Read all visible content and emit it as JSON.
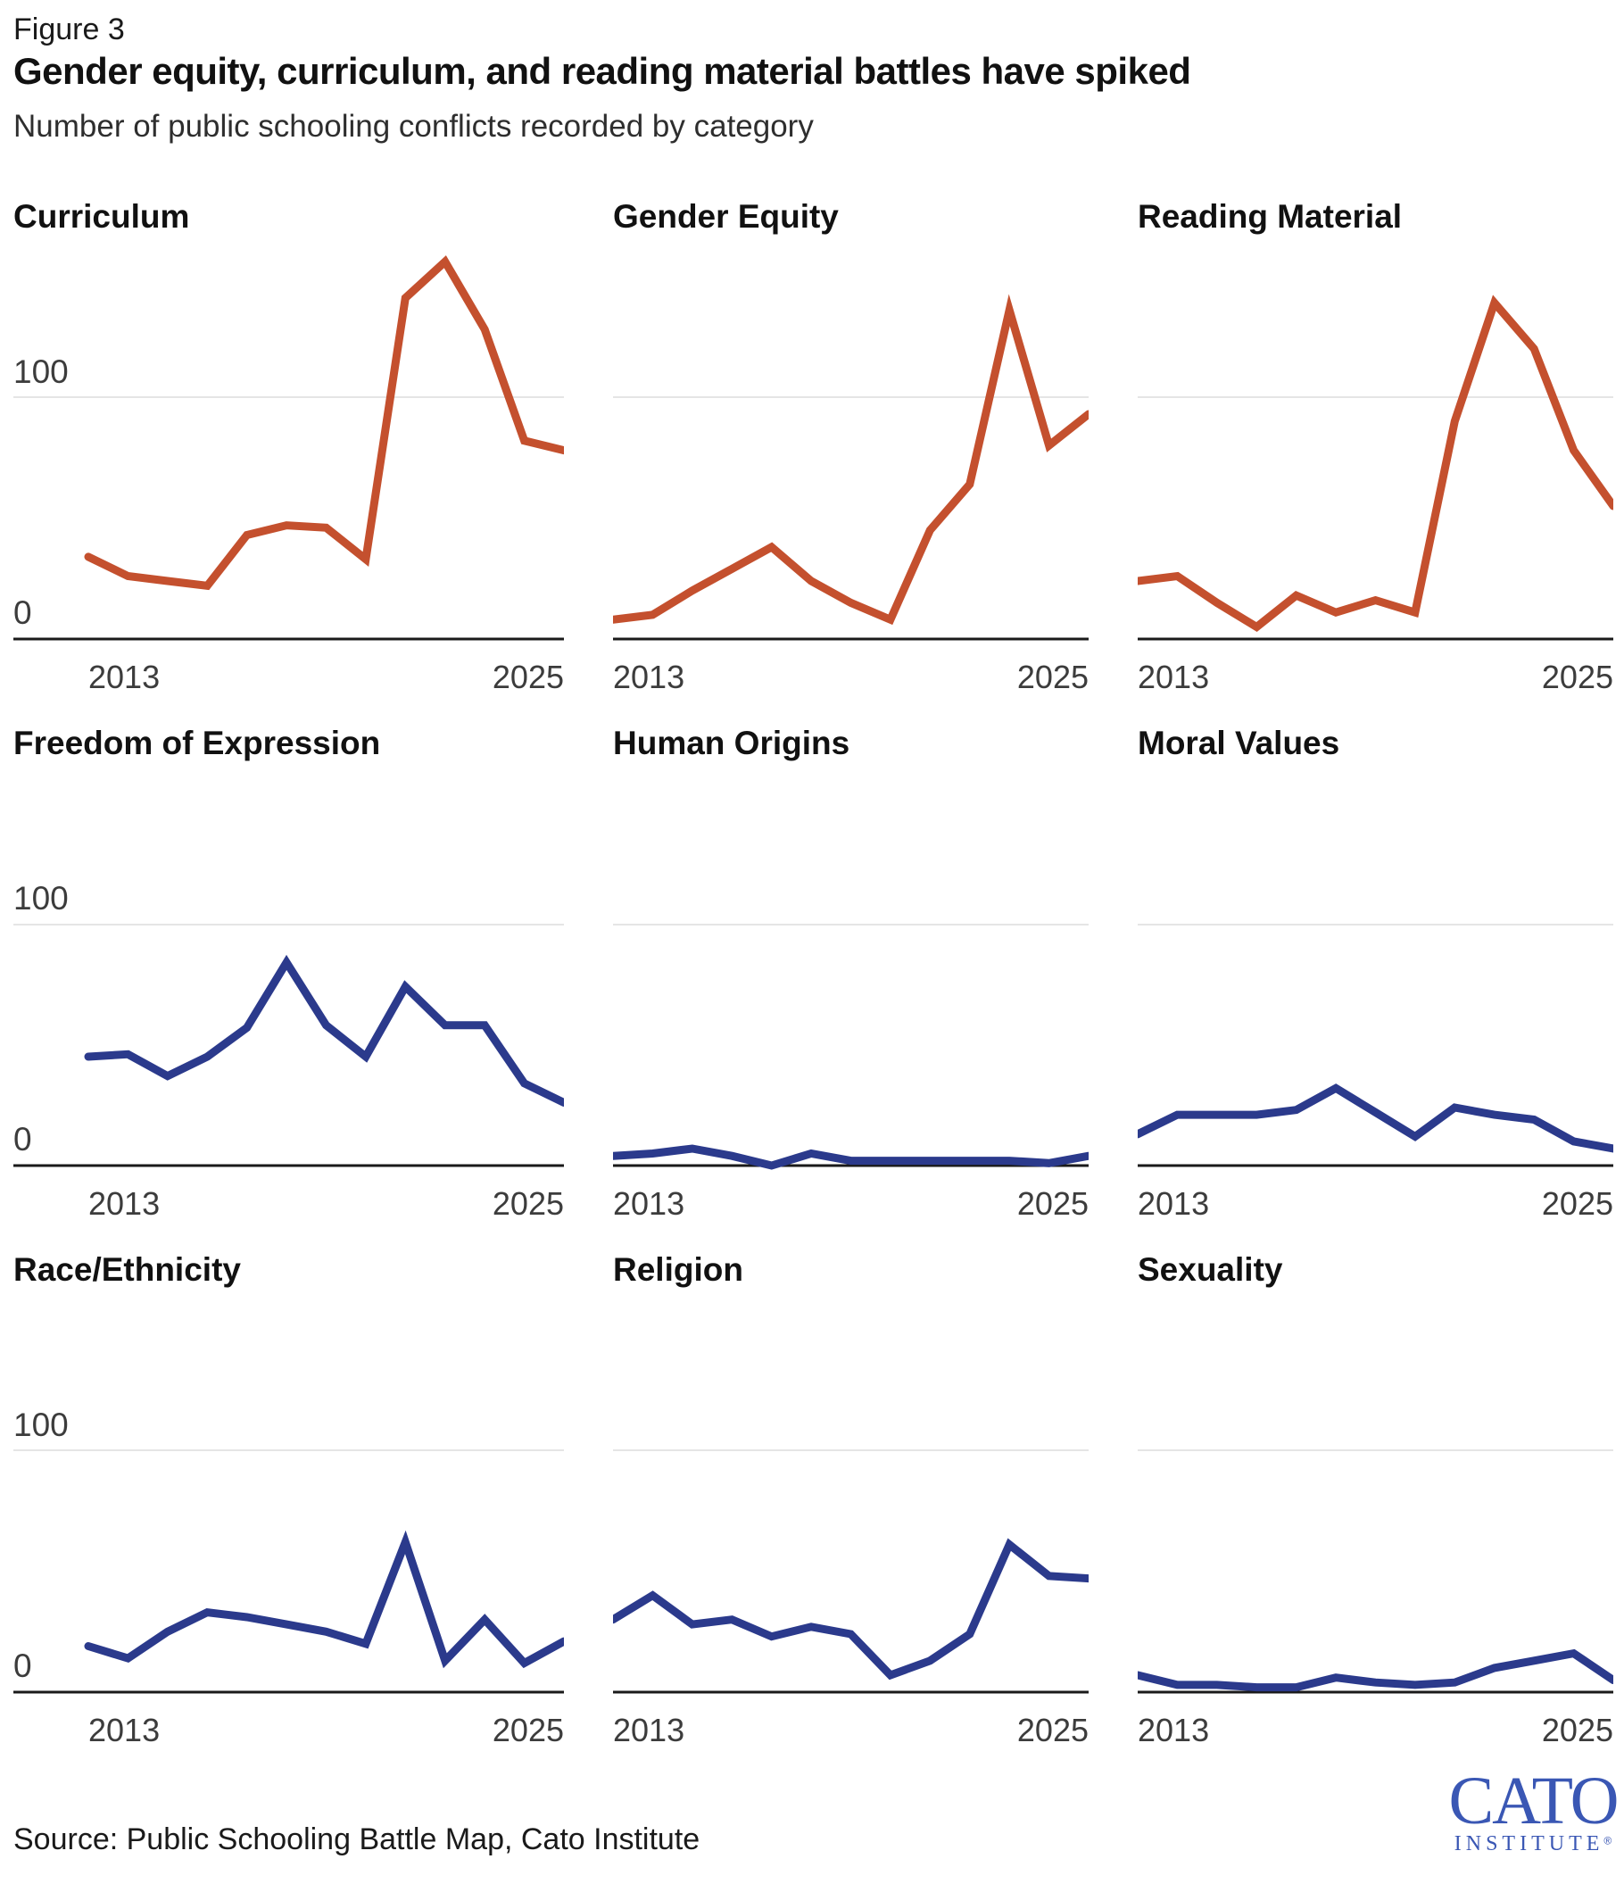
{
  "figure": {
    "label": "Figure 3",
    "title": "Gender equity, curriculum, and reading material battles have spiked",
    "subtitle": "Number of public schooling conflicts recorded by category",
    "source": "Source: Public Schooling Battle Map, Cato Institute",
    "logo": {
      "line1": "CATO",
      "line2": "INSTITUTE",
      "registered": "®"
    }
  },
  "axes": {
    "y_ticks": [
      "100",
      "0"
    ],
    "x_ticks": [
      "2013",
      "2025"
    ],
    "y_gridline_value": 100,
    "y_labels_on_left_column_only": true
  },
  "colors": {
    "highlight": "#c4502e",
    "base": "#2b3a8c",
    "grid": "#e5e5e5",
    "axis": "#1a1a1a",
    "text_dark": "#111111",
    "text_mid": "#3c3c3c",
    "logo_blue": "#3a57b4"
  },
  "chart_data": {
    "type": "line",
    "years": [
      2013,
      2014,
      2015,
      2016,
      2017,
      2018,
      2019,
      2020,
      2021,
      2022,
      2023,
      2024,
      2025
    ],
    "x_tick_labels": [
      "2013",
      "2025"
    ],
    "ylim": [
      0,
      165
    ],
    "gridlines": [
      100
    ],
    "legend": "none",
    "charts": [
      {
        "title": "Curriculum",
        "color_role": "highlight",
        "values": [
          34,
          26,
          24,
          22,
          43,
          47,
          46,
          33,
          141,
          156,
          128,
          82,
          78
        ]
      },
      {
        "title": "Gender Equity",
        "color_role": "highlight",
        "values": [
          8,
          10,
          20,
          29,
          38,
          24,
          15,
          8,
          45,
          64,
          136,
          80,
          93
        ]
      },
      {
        "title": "Reading Material",
        "color_role": "highlight",
        "values": [
          24,
          26,
          15,
          5,
          18,
          11,
          16,
          11,
          90,
          139,
          120,
          78,
          55
        ]
      },
      {
        "title": "Freedom of Expression",
        "color_role": "base",
        "values": [
          45,
          46,
          37,
          45,
          57,
          84,
          58,
          45,
          74,
          58,
          58,
          34,
          26
        ]
      },
      {
        "title": "Human Origins",
        "color_role": "base",
        "values": [
          4,
          5,
          7,
          4,
          0,
          5,
          2,
          2,
          2,
          2,
          2,
          1,
          4
        ]
      },
      {
        "title": "Moral Values",
        "color_role": "base",
        "values": [
          13,
          21,
          21,
          21,
          23,
          32,
          22,
          12,
          24,
          21,
          19,
          10,
          7
        ]
      },
      {
        "title": "Race/Ethnicity",
        "color_role": "base",
        "values": [
          19,
          14,
          25,
          33,
          31,
          28,
          25,
          20,
          62,
          13,
          30,
          12,
          21
        ]
      },
      {
        "title": "Religion",
        "color_role": "base",
        "values": [
          30,
          40,
          28,
          30,
          23,
          27,
          24,
          7,
          13,
          24,
          61,
          48,
          47
        ]
      },
      {
        "title": "Sexuality",
        "color_role": "base",
        "values": [
          7,
          3,
          3,
          2,
          2,
          6,
          4,
          3,
          4,
          10,
          13,
          16,
          5
        ]
      }
    ]
  }
}
